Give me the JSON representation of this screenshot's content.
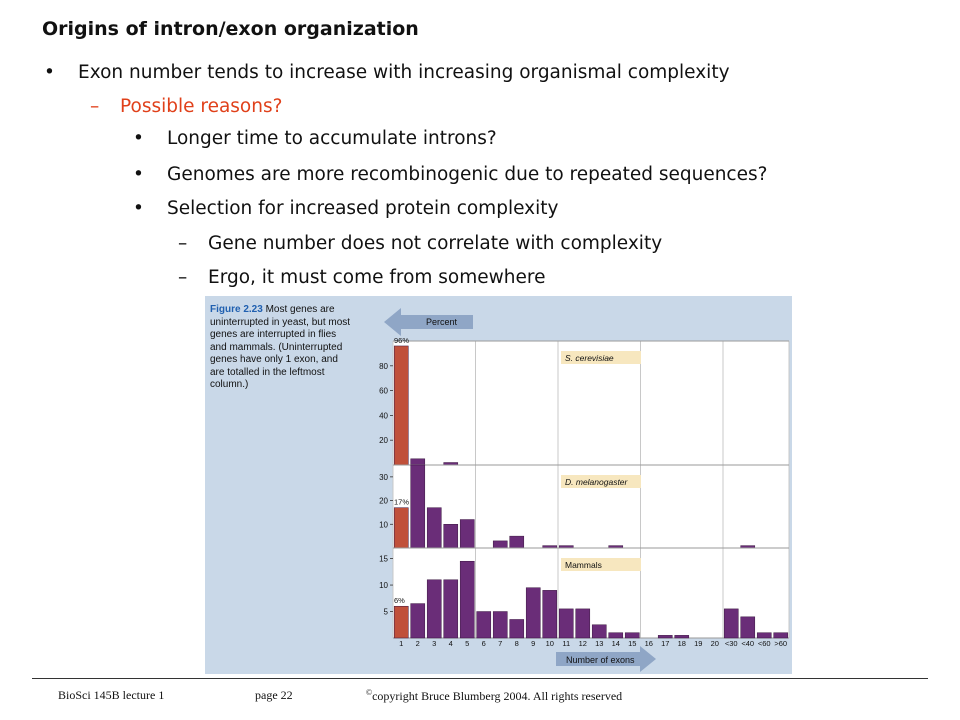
{
  "slide": {
    "title": "Origins of intron/exon organization",
    "bullet_marker": "•",
    "dash_marker": "–",
    "bullet1": "Exon number tends to increase with increasing organismal complexity",
    "sub1": "Possible reasons?",
    "sub_bullets": [
      "Longer time to accumulate introns?",
      "Genomes are more recombinogenic due to repeated sequences?",
      "Selection for increased protein complexity"
    ],
    "sub_dashes": [
      "Gene number does not correlate with complexity",
      "Ergo, it must come from somewhere"
    ]
  },
  "figure": {
    "caption_label": "Figure 2.23",
    "caption_text": "Most genes are uninterrupted in yeast, but most genes are interrupted in flies and mammals. (Uninterrupted genes have only 1 exon, and are totalled in the leftmost column.)"
  },
  "footer": {
    "course": "BioSci 145B lecture 1",
    "page": "page 22",
    "copyright_mark": "©",
    "copyright": "copyright Bruce Blumberg 2004. All rights reserved"
  },
  "colors": {
    "accent": "#e0401a",
    "figure_bg": "#c9d8e8",
    "bar_first": "#c0503a",
    "bar_other": "#6a2d78",
    "arrow": "#8fa6c6",
    "species_label_bg": "#f7e7bf"
  },
  "chart_data": {
    "type": "bar",
    "ylabel": "Percent",
    "xlabel": "Number of exons",
    "categories": [
      "1",
      "2",
      "3",
      "4",
      "5",
      "6",
      "7",
      "8",
      "9",
      "10",
      "11",
      "12",
      "13",
      "14",
      "15",
      "16",
      "17",
      "18",
      "19",
      "20",
      "<30",
      "<40",
      "<60",
      ">60"
    ],
    "panels": [
      {
        "name": "S. cerevisiae",
        "ylim": [
          0,
          100
        ],
        "yticks": [
          20,
          40,
          60,
          80
        ],
        "first_bar_label": "96%",
        "values": [
          96,
          5,
          0,
          2,
          0,
          0,
          0,
          0,
          0,
          0,
          0,
          0,
          0,
          0,
          0,
          0,
          0,
          0,
          0,
          0,
          0,
          0,
          0,
          0
        ]
      },
      {
        "name": "D. melanogaster",
        "ylim": [
          0,
          35
        ],
        "yticks": [
          10,
          20,
          30
        ],
        "first_bar_label": "17%",
        "values": [
          17,
          35,
          17,
          10,
          12,
          0,
          3,
          5,
          0,
          1,
          1,
          0,
          0,
          1,
          0,
          0,
          0,
          0,
          0,
          0,
          0,
          1,
          0,
          0
        ]
      },
      {
        "name": "Mammals",
        "ylim": [
          0,
          17
        ],
        "yticks": [
          5,
          10,
          15
        ],
        "first_bar_label": "6%",
        "values": [
          6,
          6.5,
          11,
          11,
          14.5,
          5,
          5,
          3.5,
          9.5,
          9,
          5.5,
          5.5,
          2.5,
          1,
          1,
          0,
          0.5,
          0.5,
          0,
          0,
          5.5,
          4,
          1,
          1
        ]
      }
    ]
  }
}
